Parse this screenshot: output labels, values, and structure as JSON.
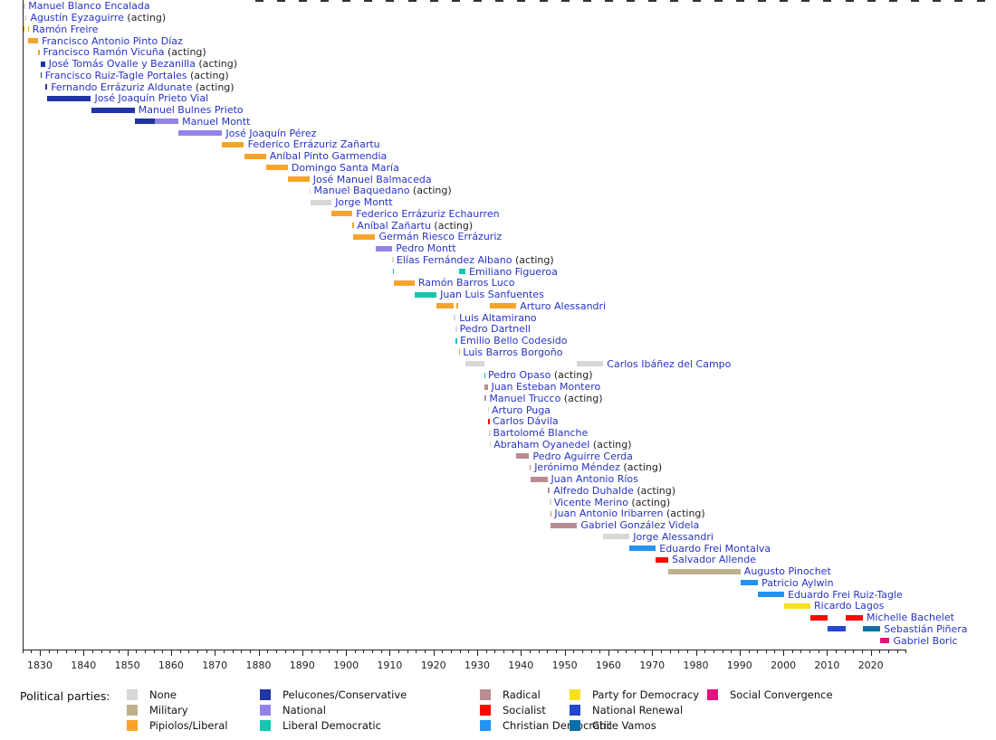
{
  "chart_data": {
    "type": "bar",
    "subtype": "gantt-timeline",
    "description": "Timeline of Chilean heads of state colored by political party",
    "acting_suffix": " (acting)",
    "axis": {
      "start_year": 1826,
      "end_year": 2028,
      "minor_tick_step": 2,
      "major_tick_years": [
        1830,
        1840,
        1850,
        1860,
        1870,
        1880,
        1890,
        1900,
        1910,
        1920,
        1930,
        1940,
        1950,
        1960,
        1970,
        1980,
        1990,
        2000,
        2010,
        2020
      ],
      "top_ticks": {
        "start": 1880,
        "end": 2045,
        "step": 5
      }
    },
    "legend_title": "Political parties:",
    "parties": {
      "none": {
        "label": "None",
        "color": "#d8d8d8"
      },
      "military": {
        "label": "Military",
        "color": "#beb08c"
      },
      "liberal": {
        "label": "Pipiolos/Liberal",
        "color": "#f7a42b"
      },
      "conservative": {
        "label": "Pelucones/Conservative",
        "color": "#2134a6"
      },
      "national": {
        "label": "National",
        "color": "#9283ea"
      },
      "liberal-democratic": {
        "label": "Liberal Democratic",
        "color": "#14c6b2"
      },
      "radical": {
        "label": "Radical",
        "color": "#b98b92"
      },
      "socialist": {
        "label": "Socialist",
        "color": "#fa0a00"
      },
      "christian-democratic": {
        "label": "Christian Democratic",
        "color": "#2493f2"
      },
      "pfd": {
        "label": "Party for Democracy",
        "color": "#f8e11c"
      },
      "national-renewal": {
        "label": "National Renewal",
        "color": "#2447d0"
      },
      "chile-vamos": {
        "label": "Chile Vamos",
        "color": "#0d6fa6"
      },
      "social-convergence": {
        "label": "Social Convergence",
        "color": "#e2137f"
      }
    },
    "legend_columns": [
      [
        "none",
        "military",
        "liberal"
      ],
      [
        "conservative",
        "national",
        "liberal-democratic"
      ],
      [
        "radical",
        "socialist",
        "christian-democratic"
      ],
      [
        "pfd",
        "national-renewal",
        "chile-vamos"
      ],
      [
        "social-convergence"
      ]
    ],
    "presidents": [
      {
        "name": "Manuel Blanco Encalada",
        "acting": false,
        "segments": [
          {
            "party": "none",
            "start": 1826.3,
            "end": 1826.55
          }
        ]
      },
      {
        "name": "Agustín Eyzaguirre",
        "acting": true,
        "segments": [
          {
            "party": "none",
            "start": 1826.55,
            "end": 1827.0
          }
        ]
      },
      {
        "name": "Ramón Freire",
        "acting": false,
        "segments": [
          {
            "party": "liberal",
            "start": 1826.1,
            "end": 1826.3
          },
          {
            "party": "liberal",
            "start": 1827.2,
            "end": 1827.45
          }
        ]
      },
      {
        "name": "Francisco Antonio Pinto Díaz",
        "acting": false,
        "segments": [
          {
            "party": "liberal",
            "start": 1827.4,
            "end": 1829.6
          }
        ]
      },
      {
        "name": "Francisco Ramón Vicuña",
        "acting": true,
        "segments": [
          {
            "party": "liberal",
            "start": 1829.6,
            "end": 1829.9
          }
        ]
      },
      {
        "name": "José Tomás Ovalle y Bezanilla",
        "acting": true,
        "segments": [
          {
            "party": "conservative",
            "start": 1830.1,
            "end": 1831.15
          }
        ]
      },
      {
        "name": "Francisco Ruiz-Tagle Portales",
        "acting": true,
        "segments": [
          {
            "party": "conservative",
            "start": 1830.15,
            "end": 1830.35
          }
        ]
      },
      {
        "name": "Fernando Errázuriz Aldunate",
        "acting": true,
        "segments": [
          {
            "party": "conservative",
            "start": 1831.2,
            "end": 1831.7
          }
        ]
      },
      {
        "name": "José Joaquín Prieto Vial",
        "acting": false,
        "segments": [
          {
            "party": "conservative",
            "start": 1831.7,
            "end": 1841.7
          }
        ]
      },
      {
        "name": "Manuel Bulnes Prieto",
        "acting": false,
        "segments": [
          {
            "party": "conservative",
            "start": 1841.7,
            "end": 1851.7
          }
        ]
      },
      {
        "name": "Manuel Montt",
        "acting": false,
        "segments": [
          {
            "party": "conservative",
            "start": 1851.7,
            "end": 1856.3
          },
          {
            "party": "national",
            "start": 1856.3,
            "end": 1861.7
          }
        ]
      },
      {
        "name": "José Joaquín Pérez",
        "acting": false,
        "segments": [
          {
            "party": "national",
            "start": 1861.7,
            "end": 1871.7
          }
        ]
      },
      {
        "name": "Federico Errázuriz Zañartu",
        "acting": false,
        "segments": [
          {
            "party": "liberal",
            "start": 1871.7,
            "end": 1876.7
          }
        ]
      },
      {
        "name": "Aníbal Pinto Garmendia",
        "acting": false,
        "segments": [
          {
            "party": "liberal",
            "start": 1876.7,
            "end": 1881.7
          }
        ]
      },
      {
        "name": "Domingo Santa María",
        "acting": false,
        "segments": [
          {
            "party": "liberal",
            "start": 1881.7,
            "end": 1886.7
          }
        ]
      },
      {
        "name": "José Manuel Balmaceda",
        "acting": false,
        "segments": [
          {
            "party": "liberal",
            "start": 1886.7,
            "end": 1891.65
          }
        ]
      },
      {
        "name": "Manuel Baquedano",
        "acting": true,
        "segments": [
          {
            "party": "none",
            "start": 1891.65,
            "end": 1891.8
          }
        ]
      },
      {
        "name": "Jorge Montt",
        "acting": false,
        "segments": [
          {
            "party": "none",
            "start": 1891.8,
            "end": 1896.7
          }
        ]
      },
      {
        "name": "Federico Errázuriz Echaurren",
        "acting": false,
        "segments": [
          {
            "party": "liberal",
            "start": 1896.7,
            "end": 1901.5
          }
        ]
      },
      {
        "name": "Aníbal Zañartu",
        "acting": true,
        "segments": [
          {
            "party": "liberal",
            "start": 1901.5,
            "end": 1901.7
          }
        ]
      },
      {
        "name": "Germán Riesco Errázuriz",
        "acting": false,
        "segments": [
          {
            "party": "liberal",
            "start": 1901.7,
            "end": 1906.7
          }
        ]
      },
      {
        "name": "Pedro Montt",
        "acting": false,
        "segments": [
          {
            "party": "national",
            "start": 1906.7,
            "end": 1910.6
          }
        ]
      },
      {
        "name": "Elías Fernández Albano",
        "acting": true,
        "segments": [
          {
            "party": "none",
            "start": 1910.6,
            "end": 1910.72
          }
        ]
      },
      {
        "name": "Emiliano Figueroa",
        "acting": false,
        "segments": [
          {
            "party": "liberal-democratic",
            "start": 1910.72,
            "end": 1910.95
          },
          {
            "party": "liberal-democratic",
            "start": 1925.8,
            "end": 1927.3
          }
        ]
      },
      {
        "name": "Ramón Barros Luco",
        "acting": false,
        "segments": [
          {
            "party": "liberal",
            "start": 1910.95,
            "end": 1915.7
          }
        ]
      },
      {
        "name": "Juan Luis Sanfuentes",
        "acting": false,
        "segments": [
          {
            "party": "liberal-democratic",
            "start": 1915.7,
            "end": 1920.7
          }
        ]
      },
      {
        "name": "Arturo Alessandri",
        "acting": false,
        "segments": [
          {
            "party": "liberal",
            "start": 1920.7,
            "end": 1924.7
          },
          {
            "party": "liberal",
            "start": 1925.2,
            "end": 1925.75
          },
          {
            "party": "liberal",
            "start": 1932.95,
            "end": 1938.95
          }
        ]
      },
      {
        "name": "Luis Altamirano",
        "acting": false,
        "segments": [
          {
            "party": "none",
            "start": 1924.7,
            "end": 1925.05
          }
        ]
      },
      {
        "name": "Pedro Dartnell",
        "acting": false,
        "segments": [
          {
            "party": "none",
            "start": 1925.05,
            "end": 1925.15
          }
        ]
      },
      {
        "name": "Emilio Bello Codesido",
        "acting": false,
        "segments": [
          {
            "party": "liberal-democratic",
            "start": 1925.05,
            "end": 1925.25
          }
        ]
      },
      {
        "name": "Luis Barros Borgoño",
        "acting": false,
        "segments": [
          {
            "party": "liberal",
            "start": 1925.75,
            "end": 1925.95
          }
        ]
      },
      {
        "name": "Carlos Ibáñez del Campo",
        "acting": false,
        "segments": [
          {
            "party": "none",
            "start": 1927.3,
            "end": 1931.55
          },
          {
            "party": "none",
            "start": 1952.85,
            "end": 1958.85
          }
        ]
      },
      {
        "name": "Pedro Opaso",
        "acting": true,
        "segments": [
          {
            "party": "liberal-democratic",
            "start": 1931.55,
            "end": 1931.65
          }
        ]
      },
      {
        "name": "Juan Esteban Montero",
        "acting": false,
        "segments": [
          {
            "party": "radical",
            "start": 1931.65,
            "end": 1932.4
          }
        ]
      },
      {
        "name": "Manuel Trucco",
        "acting": true,
        "segments": [
          {
            "party": "radical",
            "start": 1931.7,
            "end": 1931.95
          }
        ]
      },
      {
        "name": "Arturo Puga",
        "acting": false,
        "segments": [
          {
            "party": "none",
            "start": 1932.4,
            "end": 1932.48
          }
        ]
      },
      {
        "name": "Carlos Dávila",
        "acting": false,
        "segments": [
          {
            "party": "socialist",
            "start": 1932.48,
            "end": 1932.72
          }
        ]
      },
      {
        "name": "Bartolomé Blanche",
        "acting": false,
        "segments": [
          {
            "party": "none",
            "start": 1932.72,
            "end": 1932.8
          }
        ]
      },
      {
        "name": "Abraham Oyanedel",
        "acting": true,
        "segments": [
          {
            "party": "none",
            "start": 1932.8,
            "end": 1932.95
          }
        ]
      },
      {
        "name": "Pedro Aguirre Cerda",
        "acting": false,
        "segments": [
          {
            "party": "radical",
            "start": 1938.95,
            "end": 1941.9
          }
        ]
      },
      {
        "name": "Jerónimo Méndez",
        "acting": true,
        "segments": [
          {
            "party": "radical",
            "start": 1941.9,
            "end": 1942.25
          }
        ]
      },
      {
        "name": "Juan Antonio Ríos",
        "acting": false,
        "segments": [
          {
            "party": "radical",
            "start": 1942.25,
            "end": 1946.05
          }
        ]
      },
      {
        "name": "Alfredo Duhalde",
        "acting": true,
        "segments": [
          {
            "party": "radical",
            "start": 1946.05,
            "end": 1946.6
          }
        ]
      },
      {
        "name": "Vicente Merino",
        "acting": true,
        "segments": [
          {
            "party": "none",
            "start": 1946.6,
            "end": 1946.7
          }
        ]
      },
      {
        "name": "Juan Antonio Iribarren",
        "acting": true,
        "segments": [
          {
            "party": "radical",
            "start": 1946.75,
            "end": 1946.85
          }
        ]
      },
      {
        "name": "Gabriel González Videla",
        "acting": false,
        "segments": [
          {
            "party": "radical",
            "start": 1946.85,
            "end": 1952.85
          }
        ]
      },
      {
        "name": "Jorge Alessandri",
        "acting": false,
        "segments": [
          {
            "party": "none",
            "start": 1958.85,
            "end": 1964.85
          }
        ]
      },
      {
        "name": "Eduardo Frei Montalva",
        "acting": false,
        "segments": [
          {
            "party": "christian-democratic",
            "start": 1964.85,
            "end": 1970.85
          }
        ]
      },
      {
        "name": "Salvador Allende",
        "acting": false,
        "segments": [
          {
            "party": "socialist",
            "start": 1970.85,
            "end": 1973.7
          }
        ]
      },
      {
        "name": "Augusto Pinochet",
        "acting": false,
        "segments": [
          {
            "party": "military",
            "start": 1973.7,
            "end": 1990.2
          }
        ]
      },
      {
        "name": "Patricio Aylwin",
        "acting": false,
        "segments": [
          {
            "party": "christian-democratic",
            "start": 1990.2,
            "end": 1994.2
          }
        ]
      },
      {
        "name": "Eduardo Frei Ruiz-Tagle",
        "acting": false,
        "segments": [
          {
            "party": "christian-democratic",
            "start": 1994.2,
            "end": 2000.2
          }
        ]
      },
      {
        "name": "Ricardo Lagos",
        "acting": false,
        "segments": [
          {
            "party": "pfd",
            "start": 2000.2,
            "end": 2006.2
          }
        ]
      },
      {
        "name": "Michelle Bachelet",
        "acting": false,
        "segments": [
          {
            "party": "socialist",
            "start": 2006.2,
            "end": 2010.2
          },
          {
            "party": "socialist",
            "start": 2014.2,
            "end": 2018.2
          }
        ]
      },
      {
        "name": "Sebastián Piñera",
        "acting": false,
        "segments": [
          {
            "party": "national-renewal",
            "start": 2010.2,
            "end": 2014.2
          },
          {
            "party": "chile-vamos",
            "start": 2018.2,
            "end": 2022.2
          }
        ]
      },
      {
        "name": "Gabriel Boric",
        "acting": false,
        "segments": [
          {
            "party": "social-convergence",
            "start": 2022.2,
            "end": 2024.3
          }
        ]
      }
    ]
  }
}
